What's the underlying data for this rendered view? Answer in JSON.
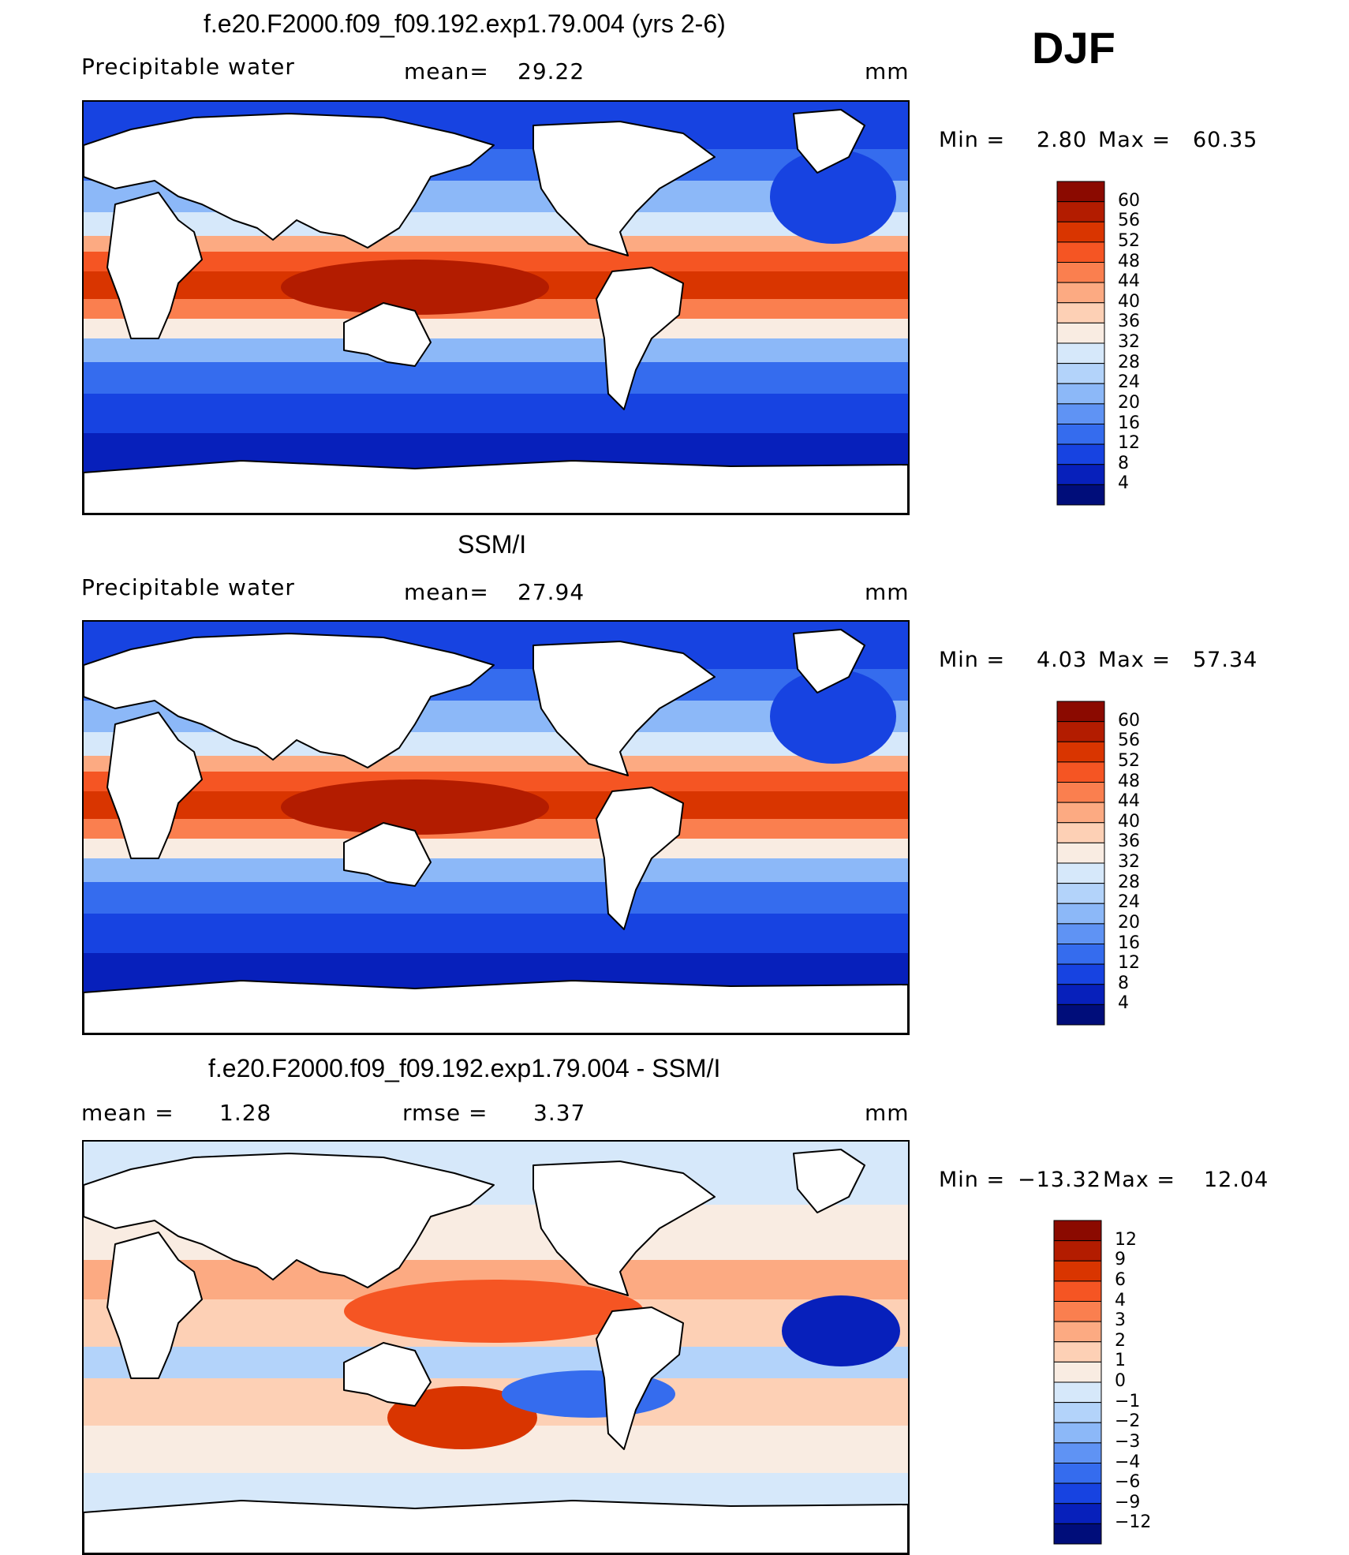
{
  "season": "DJF",
  "chart_data": [
    {
      "type": "heatmap",
      "title": "f.e20.F2000.f09_f09.192.exp1.79.004 (yrs 2-6)",
      "left_label": "Precipitable  water",
      "center_label": "mean=",
      "center_value": "29.22",
      "units": "mm",
      "min_label": "Min  =",
      "min_value": "2.80",
      "max_label": "Max  =",
      "max_value": "60.35",
      "levels": [
        "60",
        "56",
        "52",
        "48",
        "44",
        "40",
        "36",
        "32",
        "28",
        "24",
        "20",
        "16",
        "12",
        "8",
        "4"
      ],
      "colors": [
        "#8b0a00",
        "#b31c00",
        "#d93500",
        "#f55523",
        "#fa7f4f",
        "#fcaa82",
        "#fdd0b5",
        "#f9ece2",
        "#d6e8fa",
        "#b3d3fa",
        "#8cb8f8",
        "#5f93f4",
        "#356cee",
        "#1743e1",
        "#0720bb",
        "#000d7a"
      ]
    },
    {
      "type": "heatmap",
      "title": "SSM/I",
      "left_label": "Precipitable  water",
      "center_label": "mean=",
      "center_value": "27.94",
      "units": "mm",
      "min_label": "Min  =",
      "min_value": "4.03",
      "max_label": "Max  =",
      "max_value": "57.34",
      "levels": [
        "60",
        "56",
        "52",
        "48",
        "44",
        "40",
        "36",
        "32",
        "28",
        "24",
        "20",
        "16",
        "12",
        "8",
        "4"
      ],
      "colors": [
        "#8b0a00",
        "#b31c00",
        "#d93500",
        "#f55523",
        "#fa7f4f",
        "#fcaa82",
        "#fdd0b5",
        "#f9ece2",
        "#d6e8fa",
        "#b3d3fa",
        "#8cb8f8",
        "#5f93f4",
        "#356cee",
        "#1743e1",
        "#0720bb",
        "#000d7a"
      ]
    },
    {
      "type": "heatmap",
      "title": "f.e20.F2000.f09_f09.192.exp1.79.004 - SSM/I",
      "left_label": "mean  =",
      "left_value": "1.28",
      "center_label": "rmse  =",
      "center_value": "3.37",
      "units": "mm",
      "min_label": "Min  =",
      "min_value": "−13.32",
      "max_label": "Max  =",
      "max_value": "12.04",
      "levels": [
        "12",
        "9",
        "6",
        "4",
        "3",
        "2",
        "1",
        "0",
        "−1",
        "−2",
        "−3",
        "−4",
        "−6",
        "−9",
        "−12"
      ],
      "colors": [
        "#8b0a00",
        "#b31c00",
        "#d93500",
        "#f55523",
        "#fa7f4f",
        "#fcaa82",
        "#fdd0b5",
        "#f9ece2",
        "#d6e8fa",
        "#b3d3fa",
        "#8cb8f8",
        "#5f93f4",
        "#356cee",
        "#1743e1",
        "#0720bb",
        "#000d7a"
      ]
    }
  ]
}
